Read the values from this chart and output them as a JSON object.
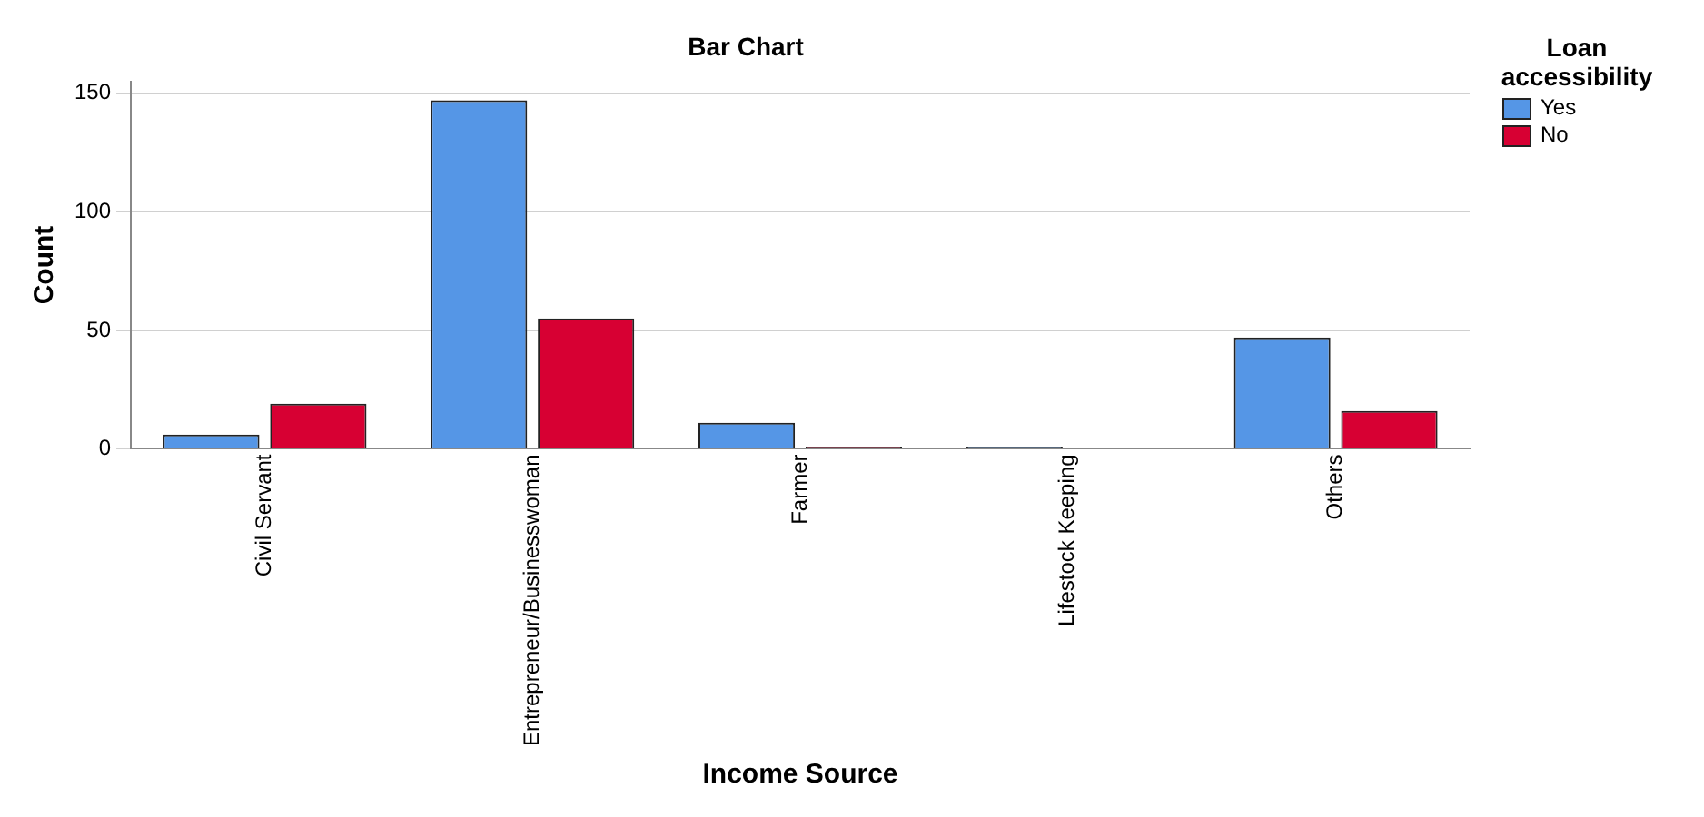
{
  "chart_data": {
    "type": "bar",
    "title": "Bar Chart",
    "xlabel": "Income Source",
    "ylabel": "Count",
    "legend_title": "Loan accessibility",
    "categories": [
      "Civil Servant",
      "Entrepreneur/Businesswoman",
      "Farmer",
      "Lifestock Keeping",
      "Others"
    ],
    "series": [
      {
        "name": "Yes",
        "color": "#5596e6",
        "values": [
          6,
          147,
          11,
          1,
          47
        ]
      },
      {
        "name": "No",
        "color": "#d70033",
        "values": [
          19,
          55,
          1,
          0,
          16
        ]
      }
    ],
    "ylim": [
      0,
      155
    ],
    "yticks": [
      0,
      50,
      100,
      150
    ],
    "grid": "y",
    "legend": "top right"
  }
}
